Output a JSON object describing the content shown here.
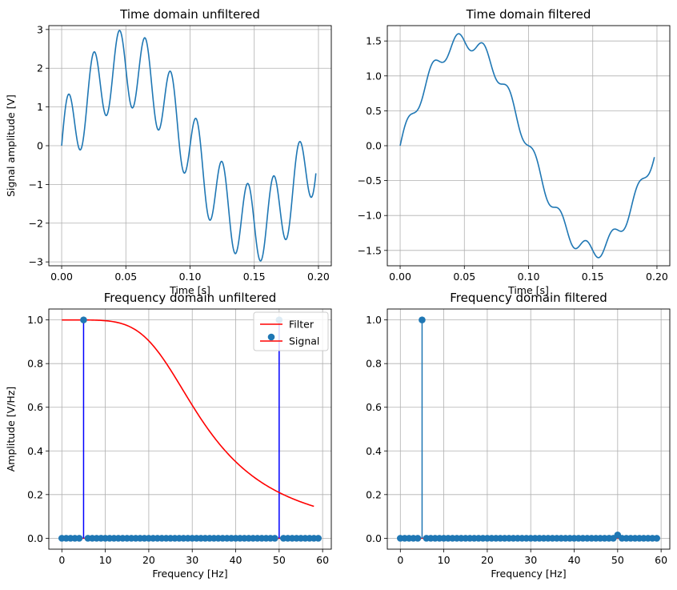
{
  "chart_data": [
    {
      "type": "line",
      "title": "Time domain unfiltered",
      "xlabel": "Time [s]",
      "ylabel": "Signal amplitude [V]",
      "xlim": [
        -0.01,
        0.21
      ],
      "ylim": [
        -3.1,
        3.1
      ],
      "xticks": [
        0.0,
        0.05,
        0.1,
        0.15,
        0.2
      ],
      "xtick_labels": [
        "0.00",
        "0.05",
        "0.10",
        "0.15",
        "0.20"
      ],
      "yticks": [
        -3,
        -2,
        -1,
        0,
        1,
        2,
        3
      ],
      "ytick_labels": [
        "−3",
        "−2",
        "−1",
        "0",
        "1",
        "2",
        "3"
      ],
      "grid": true,
      "line_color": "#1f77b4",
      "signal": {
        "components": [
          {
            "frequency_hz": 5,
            "amplitude": 2
          },
          {
            "frequency_hz": 50,
            "amplitude": 1
          }
        ],
        "t_start": 0.0,
        "t_end": 0.198
      }
    },
    {
      "type": "line",
      "title": "Time domain filtered",
      "xlabel": "Time [s]",
      "ylabel": "",
      "xlim": [
        -0.01,
        0.21
      ],
      "ylim": [
        -1.72,
        1.72
      ],
      "xticks": [
        0.0,
        0.05,
        0.1,
        0.15,
        0.2
      ],
      "xtick_labels": [
        "0.00",
        "0.05",
        "0.10",
        "0.15",
        "0.20"
      ],
      "yticks": [
        -1.5,
        -1.0,
        -0.5,
        0.0,
        0.5,
        1.0,
        1.5
      ],
      "ytick_labels": [
        "−1.5",
        "−1.0",
        "−0.5",
        "0.0",
        "0.5",
        "1.0",
        "1.5"
      ],
      "grid": true,
      "line_color": "#1f77b4",
      "signal": {
        "components": [
          {
            "frequency_hz": 5,
            "amplitude": 1.5
          },
          {
            "frequency_hz": 50,
            "amplitude": 0.12
          }
        ],
        "t_start": 0.0,
        "t_end": 0.198
      }
    },
    {
      "type": "stem",
      "title": "Frequency domain unfiltered",
      "xlabel": "Frequency [Hz]",
      "ylabel": "Amplitude [V/Hz]",
      "xlim": [
        -3,
        62
      ],
      "ylim": [
        -0.05,
        1.05
      ],
      "xticks": [
        0,
        10,
        20,
        30,
        40,
        50,
        60
      ],
      "xtick_labels": [
        "0",
        "10",
        "20",
        "30",
        "40",
        "50",
        "60"
      ],
      "yticks": [
        0.0,
        0.2,
        0.4,
        0.6,
        0.8,
        1.0
      ],
      "ytick_labels": [
        "0.0",
        "0.2",
        "0.4",
        "0.6",
        "0.8",
        "1.0"
      ],
      "grid": true,
      "legend_position": "top-right",
      "legend": [
        {
          "label": "Filter",
          "color": "#ff0000",
          "kind": "line"
        },
        {
          "label": "Signal",
          "color": "#1f77b4",
          "kind": "stem"
        }
      ],
      "stem_color": "#0000ff",
      "marker_color": "#1f77b4",
      "baseline_color": "#ff0000",
      "frequencies_hz": [
        0,
        1,
        2,
        3,
        4,
        5,
        6,
        7,
        8,
        9,
        10,
        11,
        12,
        13,
        14,
        15,
        16,
        17,
        18,
        19,
        20,
        21,
        22,
        23,
        24,
        25,
        26,
        27,
        28,
        29,
        30,
        31,
        32,
        33,
        34,
        35,
        36,
        37,
        38,
        39,
        40,
        41,
        42,
        43,
        44,
        45,
        46,
        47,
        48,
        49,
        50,
        51,
        52,
        53,
        54,
        55,
        56,
        57,
        58,
        59
      ],
      "amplitudes": [
        0,
        0,
        0,
        0,
        0,
        1,
        0,
        0,
        0,
        0,
        0,
        0,
        0,
        0,
        0,
        0,
        0,
        0,
        0,
        0,
        0,
        0,
        0,
        0,
        0,
        0,
        0,
        0,
        0,
        0,
        0,
        0,
        0,
        0,
        0,
        0,
        0,
        0,
        0,
        0,
        0,
        0,
        0,
        0,
        0,
        0,
        0,
        0,
        0,
        0,
        1,
        0,
        0,
        0,
        0,
        0,
        0,
        0,
        0,
        0
      ],
      "filter_curve": {
        "color": "#ff0000",
        "x_start": 0,
        "x_end": 58,
        "cutoff_hz": 27,
        "order": 2.5
      }
    },
    {
      "type": "stem",
      "title": "Frequency domain filtered",
      "xlabel": "Frequency [Hz]",
      "ylabel": "",
      "xlim": [
        -3,
        62
      ],
      "ylim": [
        -0.05,
        1.05
      ],
      "xticks": [
        0,
        10,
        20,
        30,
        40,
        50,
        60
      ],
      "xtick_labels": [
        "0",
        "10",
        "20",
        "30",
        "40",
        "50",
        "60"
      ],
      "yticks": [
        0.0,
        0.2,
        0.4,
        0.6,
        0.8,
        1.0
      ],
      "ytick_labels": [
        "0.0",
        "0.2",
        "0.4",
        "0.6",
        "0.8",
        "1.0"
      ],
      "grid": true,
      "stem_color": "#1f77b4",
      "marker_color": "#1f77b4",
      "baseline_color": "#ff0000",
      "frequencies_hz": [
        0,
        1,
        2,
        3,
        4,
        5,
        6,
        7,
        8,
        9,
        10,
        11,
        12,
        13,
        14,
        15,
        16,
        17,
        18,
        19,
        20,
        21,
        22,
        23,
        24,
        25,
        26,
        27,
        28,
        29,
        30,
        31,
        32,
        33,
        34,
        35,
        36,
        37,
        38,
        39,
        40,
        41,
        42,
        43,
        44,
        45,
        46,
        47,
        48,
        49,
        50,
        51,
        52,
        53,
        54,
        55,
        56,
        57,
        58,
        59
      ],
      "amplitudes": [
        0,
        0,
        0,
        0,
        0,
        1,
        0,
        0,
        0,
        0,
        0,
        0,
        0,
        0,
        0,
        0,
        0,
        0,
        0,
        0,
        0,
        0,
        0,
        0,
        0,
        0,
        0,
        0,
        0,
        0,
        0,
        0,
        0,
        0,
        0,
        0,
        0,
        0,
        0,
        0,
        0,
        0,
        0,
        0,
        0,
        0,
        0,
        0,
        0,
        0,
        0.015,
        0,
        0,
        0,
        0,
        0,
        0,
        0,
        0,
        0
      ]
    }
  ]
}
